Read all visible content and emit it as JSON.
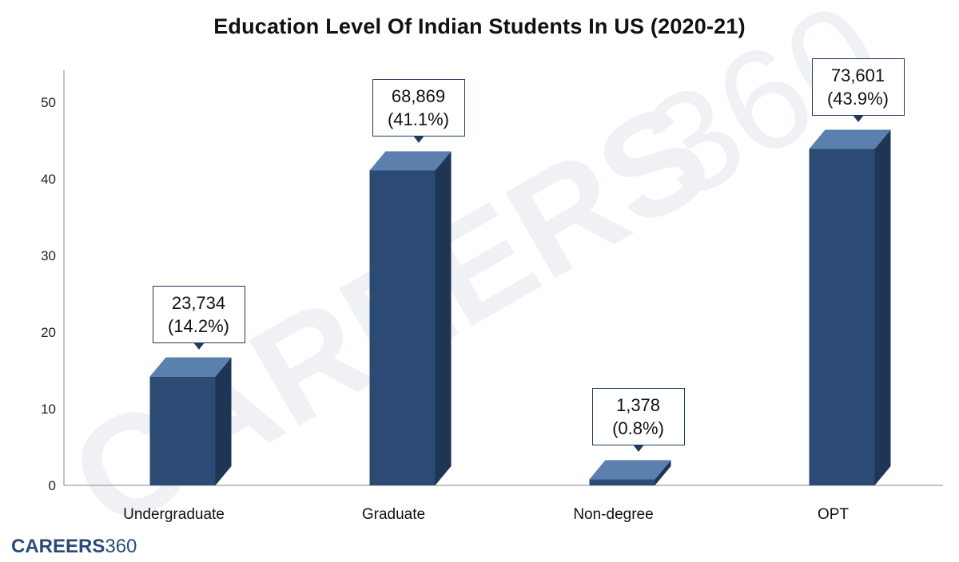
{
  "chart_data": {
    "type": "bar",
    "title": "Education Level Of Indian Students In US (2020-21)",
    "categories": [
      "Undergraduate",
      "Graduate",
      "Non-degree",
      "OPT"
    ],
    "values": [
      14.2,
      41.1,
      0.8,
      43.9
    ],
    "data_labels": [
      {
        "count": "23,734",
        "pct": "(14.2%)"
      },
      {
        "count": "68,869",
        "pct": "(41.1%)"
      },
      {
        "count": "1,378",
        "pct": "(0.8%)"
      },
      {
        "count": "73,601",
        "pct": "(43.9%)"
      }
    ],
    "xlabel": "",
    "ylabel": "",
    "ylim": [
      0,
      50
    ],
    "yticks": [
      0,
      10,
      20,
      30,
      40,
      50
    ],
    "grid": false,
    "legend": "none"
  },
  "colors": {
    "bar_front": "#2b4a74",
    "bar_side": "#1e3556",
    "bar_top": "#5b80ad",
    "axis": "#888888"
  },
  "watermark": {
    "bold_text": "CAREERS",
    "light_text": "360"
  },
  "brand": {
    "bold_text": "CAREERS",
    "light_text": "360"
  }
}
